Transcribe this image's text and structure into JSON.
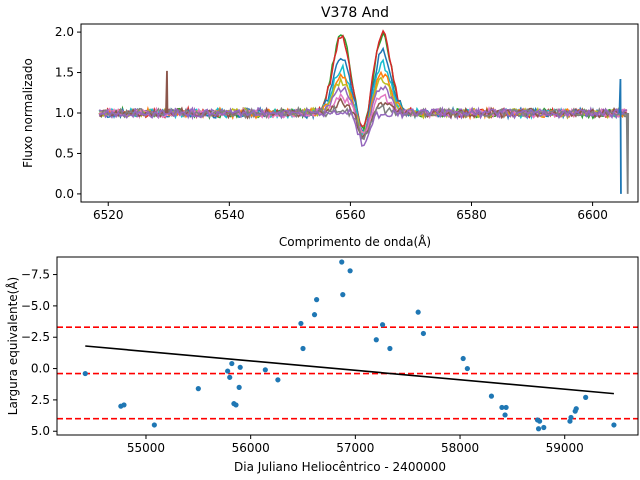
{
  "chart_data": [
    {
      "type": "line",
      "title": "V378 And",
      "xlabel": "Comprimento de onda(Å)",
      "ylabel": "Fluxo normalizado",
      "xlim": [
        6515.5,
        6607.5
      ],
      "ylim": [
        -0.1,
        2.1
      ],
      "xticks": [
        6520,
        6540,
        6560,
        6580,
        6600
      ],
      "yticks": [
        0.0,
        0.5,
        1.0,
        1.5,
        2.0
      ],
      "ytick_labels": [
        "0.0",
        "0.5",
        "1.0",
        "1.5",
        "2.0"
      ],
      "legend": "none",
      "grid": false,
      "x_range": [
        6518.5,
        6606
      ],
      "line_colors": [
        "#1f77b4",
        "#ff7f0e",
        "#2ca02c",
        "#d62728",
        "#9467bd",
        "#8c564b",
        "#e377c2",
        "#7f7f7f",
        "#bcbd22",
        "#17becf"
      ],
      "series": [
        {
          "color": "#2ca02c",
          "peak_blue": 1.0,
          "peak_red": 0.95,
          "core": -0.3
        },
        {
          "color": "#d62728",
          "peak_blue": 0.95,
          "peak_red": 1.0,
          "core": -0.3
        },
        {
          "color": "#1f77b4",
          "peak_blue": 0.7,
          "peak_red": 0.75,
          "core": -0.3
        },
        {
          "color": "#17becf",
          "peak_blue": 0.55,
          "peak_red": 0.6,
          "core": -0.3
        },
        {
          "color": "#ff7f0e",
          "peak_blue": 0.45,
          "peak_red": 0.5,
          "core": -0.35
        },
        {
          "color": "#bcbd22",
          "peak_blue": 0.4,
          "peak_red": 0.42,
          "core": -0.3
        },
        {
          "color": "#9467bd",
          "peak_blue": 0.3,
          "peak_red": 0.32,
          "core": -0.3
        },
        {
          "color": "#e377c2",
          "peak_blue": 0.2,
          "peak_red": 0.2,
          "core": -0.3
        },
        {
          "color": "#8c564b",
          "peak_blue": 0.12,
          "peak_red": 0.12,
          "core": -0.3
        },
        {
          "color": "#7f7f7f",
          "peak_blue": 0.05,
          "peak_red": 0.05,
          "core": -0.3
        },
        {
          "color": "#9467bd",
          "peak_blue": 0.0,
          "peak_red": 0.0,
          "core": -0.4
        }
      ],
      "spikes": [
        {
          "x": 6529.7,
          "y": 1.52,
          "color": "#8c564b"
        },
        {
          "x": 6604.6,
          "y": 1.42,
          "color": "#1f77b4",
          "drop_to": 0.0
        },
        {
          "x": 6605.8,
          "y": 0.0,
          "color": "#7f7f7f"
        }
      ]
    },
    {
      "type": "scatter",
      "xlabel": "Dia Juliano Heliocêntrico - 2400000",
      "ylabel": "Largura equivalente(Å)",
      "xlim": [
        54150,
        59700
      ],
      "ylim": [
        5.3,
        -8.9
      ],
      "y_inverted": true,
      "xticks": [
        55000,
        56000,
        57000,
        58000,
        59000
      ],
      "yticks": [
        -7.5,
        -5.0,
        -2.5,
        0.0,
        2.5,
        5.0
      ],
      "ytick_labels": [
        "−7.5",
        "−5.0",
        "−2.5",
        "0.0",
        "2.5",
        "5.0"
      ],
      "point_color": "#1f77b4",
      "grid": false,
      "legend": "none",
      "points": [
        [
          54420,
          0.4
        ],
        [
          54760,
          3.0
        ],
        [
          54790,
          2.9
        ],
        [
          55080,
          4.5
        ],
        [
          55500,
          1.6
        ],
        [
          55780,
          0.2
        ],
        [
          55800,
          0.7
        ],
        [
          55820,
          -0.4
        ],
        [
          55840,
          2.8
        ],
        [
          55860,
          2.9
        ],
        [
          55890,
          1.5
        ],
        [
          55900,
          -0.1
        ],
        [
          56140,
          0.1
        ],
        [
          56260,
          0.9
        ],
        [
          56480,
          -3.6
        ],
        [
          56500,
          -1.6
        ],
        [
          56610,
          -4.3
        ],
        [
          56630,
          -5.5
        ],
        [
          56870,
          -8.5
        ],
        [
          56880,
          -5.9
        ],
        [
          56950,
          -7.8
        ],
        [
          57200,
          -2.3
        ],
        [
          57260,
          -3.5
        ],
        [
          57330,
          -1.6
        ],
        [
          57600,
          -4.5
        ],
        [
          57650,
          -2.8
        ],
        [
          58030,
          -0.8
        ],
        [
          58070,
          0.0
        ],
        [
          58300,
          2.2
        ],
        [
          58400,
          3.1
        ],
        [
          58430,
          3.7
        ],
        [
          58440,
          3.1
        ],
        [
          58740,
          4.1
        ],
        [
          58750,
          4.8
        ],
        [
          58760,
          4.2
        ],
        [
          58800,
          4.7
        ],
        [
          59050,
          4.2
        ],
        [
          59060,
          3.9
        ],
        [
          59100,
          3.4
        ],
        [
          59110,
          3.2
        ],
        [
          59200,
          2.3
        ],
        [
          59470,
          4.5
        ]
      ],
      "trend_line": {
        "x": [
          54420,
          59470
        ],
        "y": [
          -1.8,
          2.0
        ],
        "color": "#000000"
      },
      "reference_lines": [
        {
          "y": -3.3,
          "color": "#ff0000",
          "style": "dashed"
        },
        {
          "y": 0.4,
          "color": "#ff0000",
          "style": "dashed"
        },
        {
          "y": 4.0,
          "color": "#ff0000",
          "style": "dashed"
        }
      ]
    }
  ]
}
